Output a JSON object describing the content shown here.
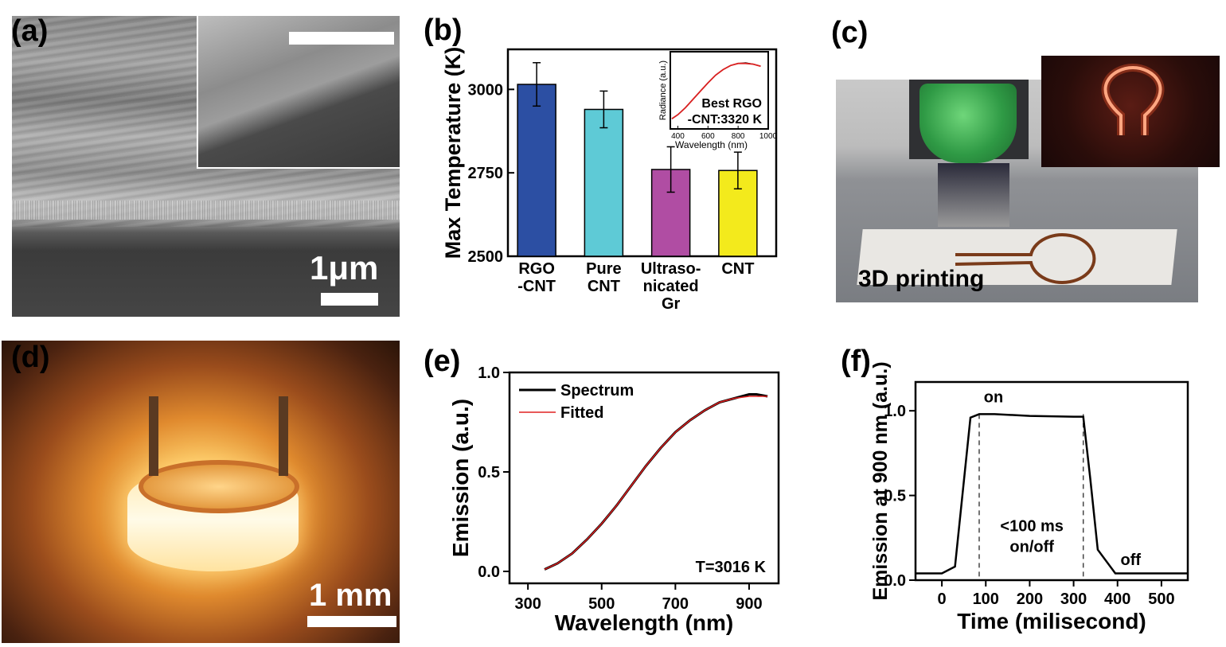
{
  "panel_a": {
    "label": "(a)",
    "scale_text": "1μm"
  },
  "panel_c": {
    "label": "(c)",
    "caption": "3D printing"
  },
  "panel_d": {
    "label": "(d)",
    "scale_text": "1 mm"
  },
  "chart_data": [
    {
      "id": "b",
      "panel_label": "(b)",
      "type": "bar",
      "ylabel": "Max Temperature (K)",
      "ylim": [
        2500,
        3120
      ],
      "yticks": [
        2500,
        2750,
        3000
      ],
      "categories": [
        [
          "RGO",
          "-CNT"
        ],
        [
          "Pure",
          "CNT"
        ],
        [
          "Ultraso-",
          "nicated",
          "Gr"
        ],
        [
          "CNT"
        ]
      ],
      "values": [
        3015,
        2940,
        2760,
        2757
      ],
      "errors": [
        65,
        55,
        68,
        55
      ],
      "colors": [
        "#2c4fa3",
        "#5ecad6",
        "#b04da3",
        "#f3ea1c"
      ],
      "inset": {
        "type": "line",
        "ylabel": "Radiance (a.u.)",
        "xlabel": "Wavelength (nm)",
        "xlim": [
          350,
          1000
        ],
        "xticks": [
          400,
          600,
          800,
          1000
        ],
        "annotation": [
          "Best RGO",
          "-CNT:3320 K"
        ],
        "series": [
          {
            "color": "#000000",
            "x": [
              360,
              400,
              450,
              500,
              550,
              600,
              650,
              700,
              750,
              800,
              850,
              900,
              950
            ],
            "y": [
              0.1,
              0.16,
              0.26,
              0.38,
              0.5,
              0.62,
              0.73,
              0.81,
              0.87,
              0.9,
              0.91,
              0.89,
              0.86
            ]
          },
          {
            "color": "#d92020",
            "x": [
              360,
              400,
              450,
              500,
              550,
              600,
              650,
              700,
              750,
              800,
              850,
              900,
              950
            ],
            "y": [
              0.1,
              0.16,
              0.26,
              0.38,
              0.5,
              0.62,
              0.73,
              0.81,
              0.87,
              0.9,
              0.9,
              0.89,
              0.86
            ]
          }
        ]
      }
    },
    {
      "id": "e",
      "panel_label": "(e)",
      "type": "line",
      "xlabel": "Wavelength (nm)",
      "ylabel": "Emission (a.u.)",
      "xlim": [
        250,
        980
      ],
      "ylim": [
        -0.06,
        1.0
      ],
      "xticks": [
        300,
        500,
        700,
        900
      ],
      "yticks": [
        0.0,
        0.5,
        1.0
      ],
      "ytick_labels": [
        "0.0",
        "0.5",
        "1.0"
      ],
      "annotation": "T=3016 K",
      "legend_position": "top-left",
      "series": [
        {
          "name": "Spectrum",
          "color": "#000000",
          "x": [
            345,
            380,
            420,
            460,
            500,
            540,
            580,
            620,
            660,
            700,
            740,
            780,
            820,
            860,
            900,
            920,
            950
          ],
          "y": [
            0.01,
            0.04,
            0.09,
            0.16,
            0.24,
            0.33,
            0.43,
            0.53,
            0.62,
            0.7,
            0.76,
            0.81,
            0.85,
            0.87,
            0.89,
            0.89,
            0.88
          ]
        },
        {
          "name": "Fitted",
          "color": "#e02020",
          "x": [
            345,
            380,
            420,
            460,
            500,
            540,
            580,
            620,
            660,
            700,
            740,
            780,
            820,
            860,
            900,
            920,
            950
          ],
          "y": [
            0.01,
            0.04,
            0.09,
            0.16,
            0.24,
            0.33,
            0.43,
            0.53,
            0.62,
            0.7,
            0.76,
            0.81,
            0.85,
            0.87,
            0.88,
            0.88,
            0.88
          ]
        }
      ]
    },
    {
      "id": "f",
      "panel_label": "(f)",
      "type": "line",
      "xlabel": "Time (milisecond)",
      "ylabel": "Emission at 900 nm (a.u.)",
      "xlim": [
        -60,
        560
      ],
      "ylim": [
        0.0,
        1.17
      ],
      "xticks": [
        0,
        100,
        200,
        300,
        400,
        500
      ],
      "yticks": [
        0.0,
        0.5,
        1.0
      ],
      "ytick_labels": [
        "0.0",
        "0.5",
        "1.0"
      ],
      "annotations": {
        "on": "on",
        "off": "off",
        "middle": [
          "<100 ms",
          "on/off"
        ]
      },
      "dashed_x": [
        85,
        322
      ],
      "series": [
        {
          "color": "#000000",
          "x": [
            -60,
            0,
            30,
            65,
            85,
            120,
            200,
            300,
            322,
            338,
            355,
            395,
            420,
            560
          ],
          "y": [
            0.04,
            0.04,
            0.08,
            0.96,
            0.98,
            0.98,
            0.97,
            0.965,
            0.965,
            0.6,
            0.18,
            0.04,
            0.04,
            0.04
          ]
        }
      ]
    }
  ]
}
